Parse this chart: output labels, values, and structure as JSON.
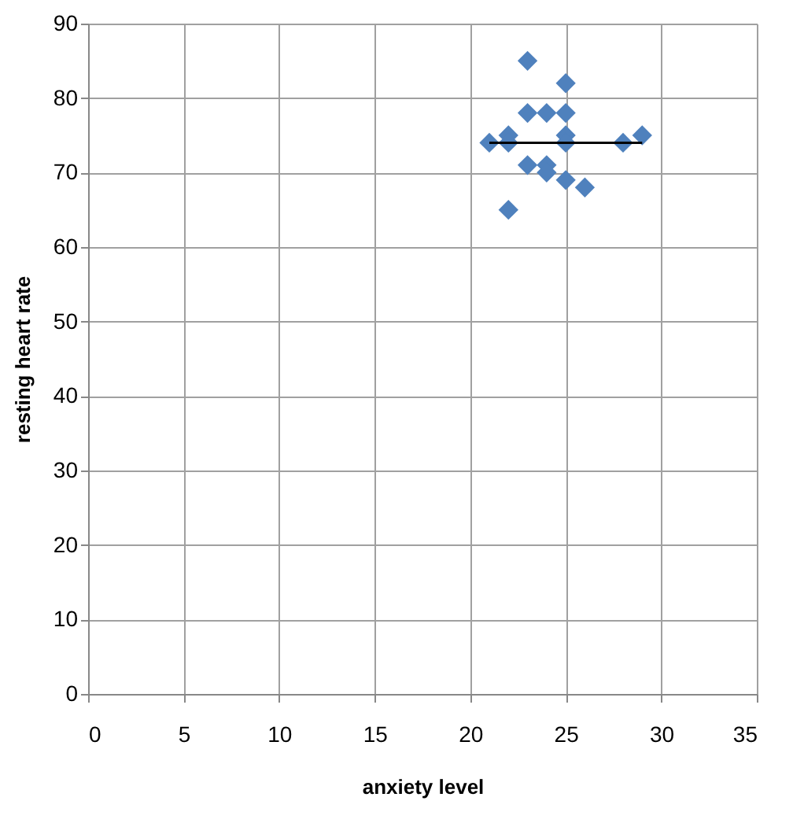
{
  "chart_data": {
    "type": "scatter",
    "xlabel": "anxiety level",
    "ylabel": "resting heart rate",
    "series": [
      {
        "color": "#4f81bd",
        "marker": "diamond",
        "x": [
          21,
          22,
          22,
          22,
          23,
          23,
          23,
          24,
          24,
          24,
          25,
          25,
          25,
          25,
          25,
          26,
          28,
          29
        ],
        "values": [
          74,
          75,
          74,
          65,
          85,
          78,
          71,
          78,
          71,
          70,
          82,
          78,
          75,
          74,
          69,
          68,
          74,
          75
        ]
      },
      {
        "type": "line",
        "color": "#000000",
        "marker": "none",
        "line_style": "solid",
        "x": [
          21,
          29
        ],
        "values": [
          74,
          74
        ]
      }
    ],
    "xlim": [
      0,
      35
    ],
    "xticks": [
      0,
      5,
      10,
      15,
      20,
      25,
      30,
      35
    ],
    "ylim": [
      0,
      90
    ],
    "yticks": [
      0,
      10,
      20,
      30,
      40,
      50,
      60,
      70,
      80,
      90
    ],
    "grid": true
  }
}
